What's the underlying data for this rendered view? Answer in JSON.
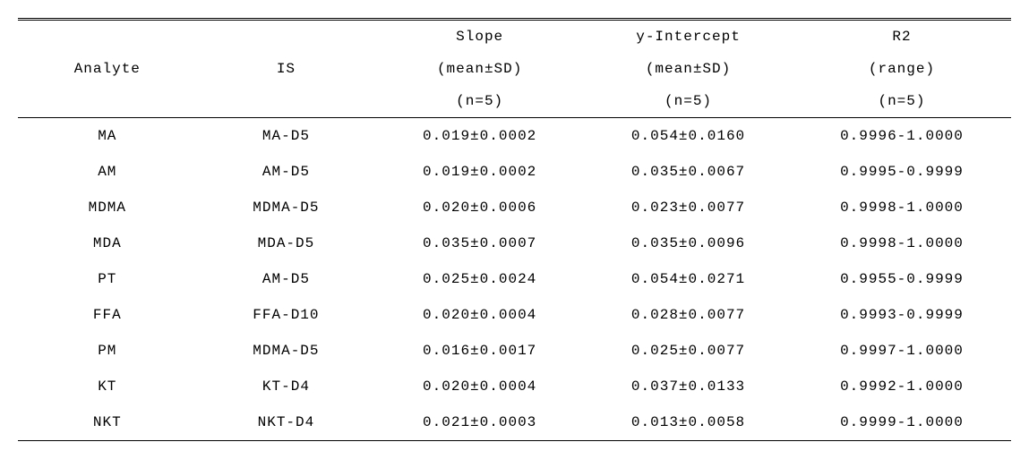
{
  "table": {
    "columns": [
      {
        "id": "analyte",
        "lines": [
          "",
          "Analyte",
          ""
        ]
      },
      {
        "id": "is",
        "lines": [
          "",
          "IS",
          ""
        ]
      },
      {
        "id": "slope",
        "lines": [
          "Slope",
          "(mean±SD)",
          "(n=5)"
        ]
      },
      {
        "id": "yint",
        "lines": [
          "y-Intercept",
          "(mean±SD)",
          "(n=5)"
        ]
      },
      {
        "id": "r2",
        "lines": [
          "R2",
          "(range)",
          "(n=5)"
        ]
      }
    ],
    "rows": [
      {
        "analyte": "MA",
        "is": "MA-D5",
        "slope": "0.019±0.0002",
        "yint": "0.054±0.0160",
        "r2": "0.9996-1.0000"
      },
      {
        "analyte": "AM",
        "is": "AM-D5",
        "slope": "0.019±0.0002",
        "yint": "0.035±0.0067",
        "r2": "0.9995-0.9999"
      },
      {
        "analyte": "MDMA",
        "is": "MDMA-D5",
        "slope": "0.020±0.0006",
        "yint": "0.023±0.0077",
        "r2": "0.9998-1.0000"
      },
      {
        "analyte": "MDA",
        "is": "MDA-D5",
        "slope": "0.035±0.0007",
        "yint": "0.035±0.0096",
        "r2": "0.9998-1.0000"
      },
      {
        "analyte": "PT",
        "is": "AM-D5",
        "slope": "0.025±0.0024",
        "yint": "0.054±0.0271",
        "r2": "0.9955-0.9999"
      },
      {
        "analyte": "FFA",
        "is": "FFA-D10",
        "slope": "0.020±0.0004",
        "yint": "0.028±0.0077",
        "r2": "0.9993-0.9999"
      },
      {
        "analyte": "PM",
        "is": "MDMA-D5",
        "slope": "0.016±0.0017",
        "yint": "0.025±0.0077",
        "r2": "0.9997-1.0000"
      },
      {
        "analyte": "KT",
        "is": "KT-D4",
        "slope": "0.020±0.0004",
        "yint": "0.037±0.0133",
        "r2": "0.9992-1.0000"
      },
      {
        "analyte": "NKT",
        "is": "NKT-D4",
        "slope": "0.021±0.0003",
        "yint": "0.013±0.0058",
        "r2": "0.9999-1.0000"
      }
    ]
  }
}
